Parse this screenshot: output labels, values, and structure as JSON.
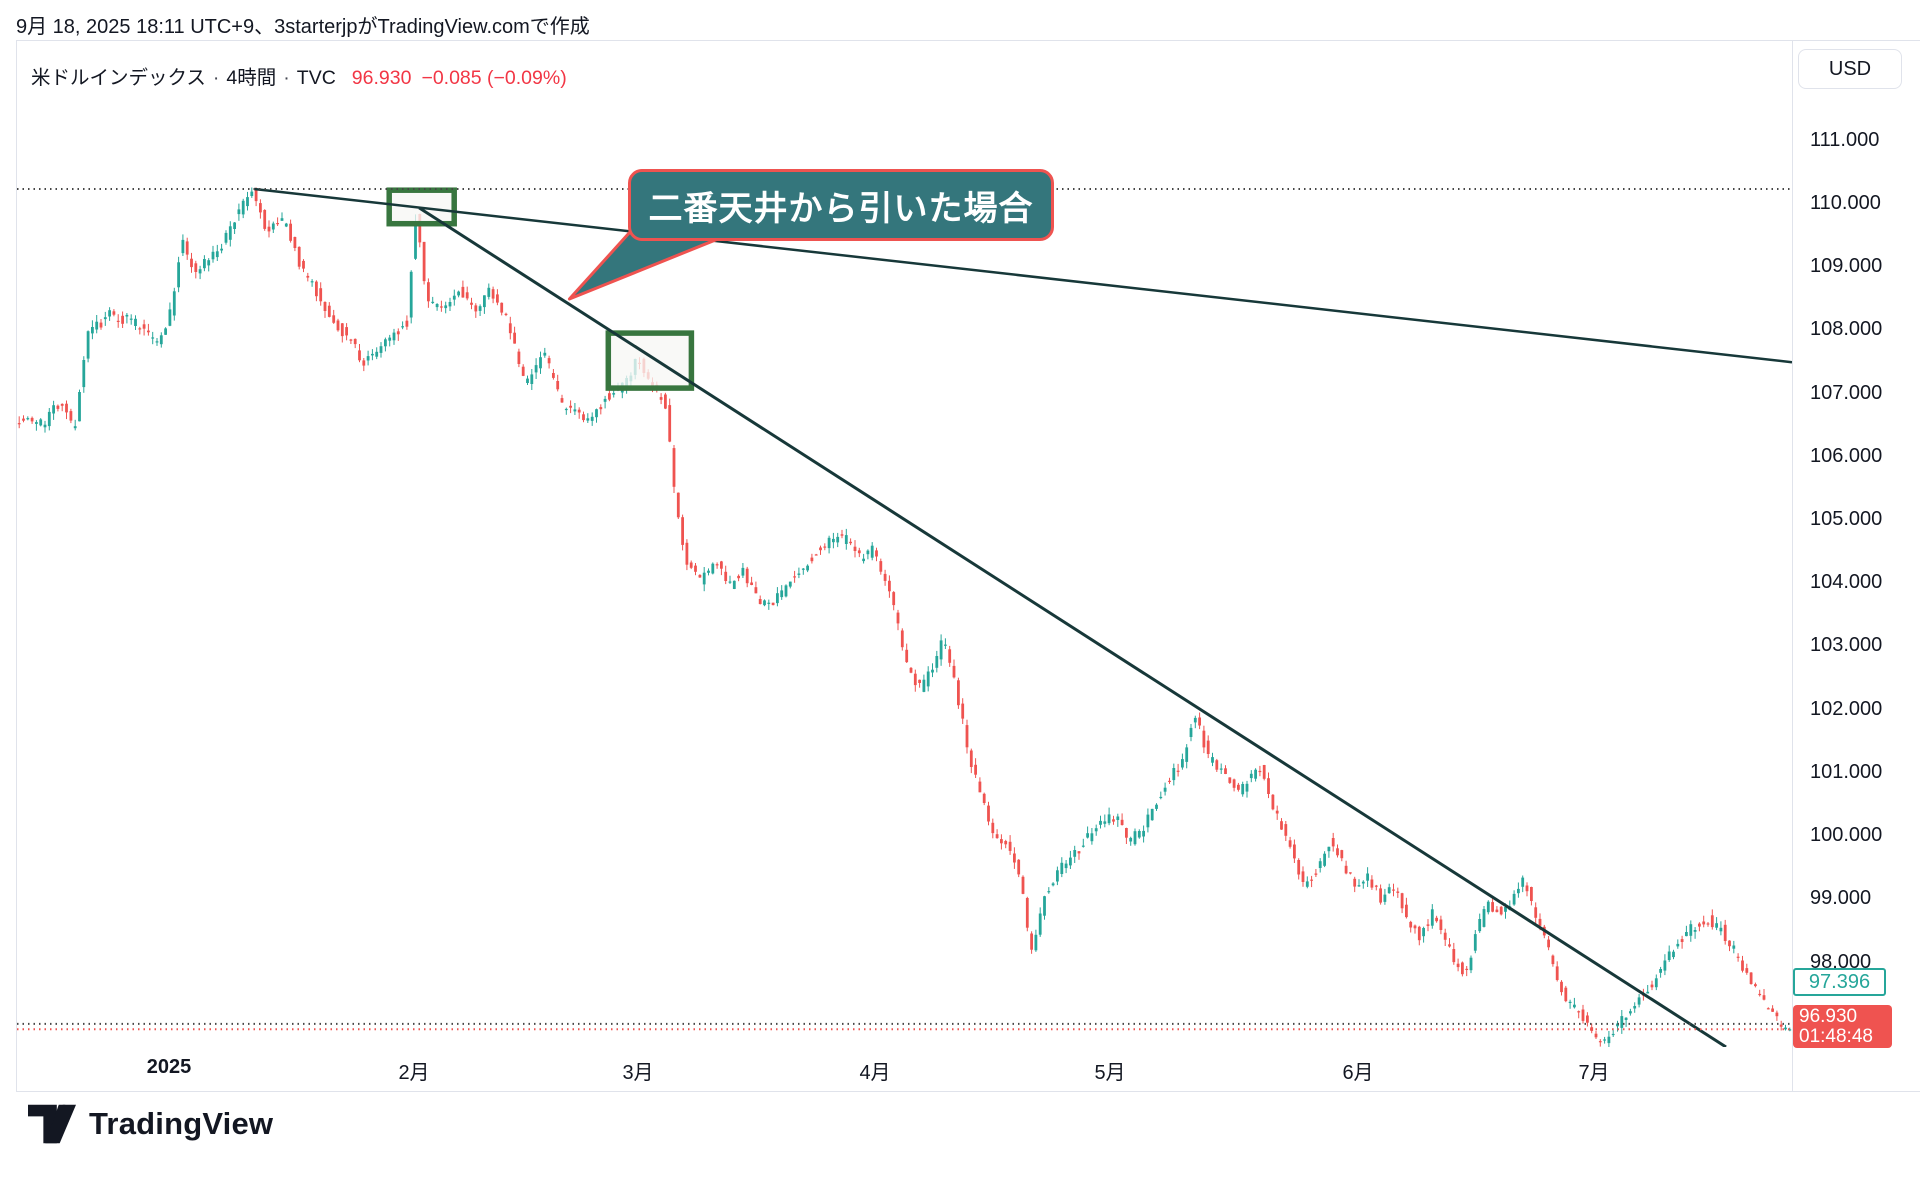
{
  "page": {
    "attribution": "9月 18, 2025 18:11 UTC+9、3starterjpがTradingView.comで作成",
    "watermark": "TradingView"
  },
  "legend": {
    "symbol": "米ドルインデックス",
    "sep": "·",
    "interval": "4時間",
    "exchange": "TVC",
    "price": "96.930",
    "change": "−0.085 (−0.09%)"
  },
  "price_axis": {
    "currency": "USD",
    "ticks": [
      "111.000",
      "110.000",
      "109.000",
      "108.000",
      "107.000",
      "106.000",
      "105.000",
      "104.000",
      "103.000",
      "102.000",
      "101.000",
      "100.000",
      "99.000",
      "98.000"
    ],
    "teal_label": "97.396",
    "red_label_price": "96.930",
    "red_label_countdown": "01:48:48"
  },
  "time_axis": {
    "labels": [
      {
        "label": "2025",
        "f": 0.0857,
        "bold": true
      },
      {
        "label": "2月",
        "f": 0.2238
      },
      {
        "label": "3月",
        "f": 0.3501
      },
      {
        "label": "4月",
        "f": 0.4831
      },
      {
        "label": "5月",
        "f": 0.6156
      },
      {
        "label": "6月",
        "f": 0.7554
      },
      {
        "label": "7月",
        "f": 0.8884
      }
    ]
  },
  "chart_data": {
    "type": "candlestick",
    "title": "米ドルインデックス · 4時間 · TVC",
    "last_price": 96.93,
    "prev_close": 97.015,
    "change": "-0.085",
    "change_pct": "-0.09%",
    "ylim": [
      96.65,
      112.56
    ],
    "bar_count": 412,
    "seed": 7,
    "colors": {
      "up": "#26a69a",
      "down": "#ef5350",
      "trend": "#173839",
      "box": "#38763f",
      "box_fill": "rgba(247,247,245,0.78)",
      "dotted": "#464646",
      "dotted_red": "#ef5350"
    },
    "levels": [
      {
        "price": 110.22,
        "color": "#464646",
        "style": "dotted",
        "name": "high-level"
      },
      {
        "price": 97.015,
        "color": "#464646",
        "style": "dotted",
        "name": "prev-close-level"
      },
      {
        "price": 96.93,
        "color": "#ef5350",
        "style": "dotted",
        "name": "last-price-level"
      }
    ],
    "trendlines": [
      {
        "name": "trendline-from-first-top",
        "x1f": 0.1336,
        "p1": 110.22,
        "x2f": 1.0,
        "p2": 107.48,
        "width": 2.5
      },
      {
        "name": "trendline-from-second-top",
        "x1f": 0.2266,
        "p1": 109.92,
        "x2f": 0.9628,
        "p2": 96.65,
        "width": 3
      }
    ],
    "boxes": [
      {
        "name": "second-top-box",
        "x1f": 0.2097,
        "p1": 110.2,
        "x2f": 0.2463,
        "p2": 109.67
      },
      {
        "name": "third-top-box",
        "x1f": 0.3331,
        "p1": 107.94,
        "x2f": 0.3799,
        "p2": 107.07
      }
    ],
    "callout": {
      "text": "二番天井から引いた場合",
      "x1f": 0.3444,
      "p_top": 110.54,
      "x2f": 0.5846,
      "p_bottom": 109.4,
      "tail_fx": 0.3112,
      "tail_p": 108.48
    },
    "price_path": [
      [
        0,
        106.6
      ],
      [
        0.016,
        106.5
      ],
      [
        0.026,
        106.9
      ],
      [
        0.033,
        106.4
      ],
      [
        0.041,
        107.9
      ],
      [
        0.053,
        108.25
      ],
      [
        0.067,
        108.1
      ],
      [
        0.08,
        107.8
      ],
      [
        0.088,
        108.3
      ],
      [
        0.094,
        109.45
      ],
      [
        0.101,
        108.9
      ],
      [
        0.114,
        109.2
      ],
      [
        0.125,
        109.8
      ],
      [
        0.134,
        110.18
      ],
      [
        0.142,
        109.55
      ],
      [
        0.152,
        109.7
      ],
      [
        0.161,
        109.0
      ],
      [
        0.169,
        108.65
      ],
      [
        0.18,
        108.1
      ],
      [
        0.189,
        107.85
      ],
      [
        0.197,
        107.45
      ],
      [
        0.212,
        107.9
      ],
      [
        0.221,
        108.1
      ],
      [
        0.2265,
        109.9
      ],
      [
        0.232,
        108.5
      ],
      [
        0.242,
        108.3
      ],
      [
        0.251,
        108.6
      ],
      [
        0.26,
        108.35
      ],
      [
        0.268,
        108.6
      ],
      [
        0.277,
        108.2
      ],
      [
        0.288,
        107.15
      ],
      [
        0.299,
        107.6
      ],
      [
        0.309,
        106.8
      ],
      [
        0.324,
        106.5
      ],
      [
        0.333,
        106.9
      ],
      [
        0.343,
        107.1
      ],
      [
        0.352,
        107.55
      ],
      [
        0.36,
        107.1
      ],
      [
        0.3675,
        106.8
      ],
      [
        0.372,
        105.4
      ],
      [
        0.379,
        104.3
      ],
      [
        0.387,
        104.0
      ],
      [
        0.395,
        104.35
      ],
      [
        0.4025,
        103.9
      ],
      [
        0.41,
        104.2
      ],
      [
        0.418,
        103.75
      ],
      [
        0.426,
        103.6
      ],
      [
        0.436,
        103.95
      ],
      [
        0.444,
        104.2
      ],
      [
        0.452,
        104.5
      ],
      [
        0.4605,
        104.65
      ],
      [
        0.469,
        104.7
      ],
      [
        0.477,
        104.4
      ],
      [
        0.484,
        104.5
      ],
      [
        0.494,
        103.9
      ],
      [
        0.502,
        102.8
      ],
      [
        0.511,
        102.3
      ],
      [
        0.5175,
        102.6
      ],
      [
        0.524,
        103.1
      ],
      [
        0.53,
        102.5
      ],
      [
        0.538,
        101.3
      ],
      [
        0.5445,
        100.7
      ],
      [
        0.553,
        100.0
      ],
      [
        0.5615,
        99.8
      ],
      [
        0.568,
        99.2
      ],
      [
        0.574,
        98.1
      ],
      [
        0.581,
        99.0
      ],
      [
        0.59,
        99.5
      ],
      [
        0.5985,
        99.7
      ],
      [
        0.6065,
        100.0
      ],
      [
        0.615,
        100.25
      ],
      [
        0.622,
        100.3
      ],
      [
        0.629,
        99.9
      ],
      [
        0.6365,
        100.1
      ],
      [
        0.644,
        100.5
      ],
      [
        0.6515,
        100.9
      ],
      [
        0.6595,
        101.2
      ],
      [
        0.6655,
        101.95
      ],
      [
        0.674,
        101.2
      ],
      [
        0.6825,
        101.0
      ],
      [
        0.691,
        100.7
      ],
      [
        0.698,
        100.9
      ],
      [
        0.7035,
        101.1
      ],
      [
        0.711,
        100.4
      ],
      [
        0.719,
        99.9
      ],
      [
        0.728,
        99.2
      ],
      [
        0.735,
        99.45
      ],
      [
        0.743,
        99.95
      ],
      [
        0.75,
        99.5
      ],
      [
        0.7565,
        99.2
      ],
      [
        0.763,
        99.35
      ],
      [
        0.771,
        99.0
      ],
      [
        0.7785,
        99.15
      ],
      [
        0.786,
        98.7
      ],
      [
        0.793,
        98.4
      ],
      [
        0.801,
        98.8
      ],
      [
        0.808,
        98.3
      ],
      [
        0.8155,
        97.9
      ],
      [
        0.8195,
        97.8
      ],
      [
        0.825,
        98.5
      ],
      [
        0.832,
        98.9
      ],
      [
        0.8405,
        98.8
      ],
      [
        0.845,
        99.0
      ],
      [
        0.8525,
        99.3
      ],
      [
        0.859,
        98.7
      ],
      [
        0.866,
        98.2
      ],
      [
        0.8715,
        97.6
      ],
      [
        0.879,
        97.3
      ],
      [
        0.886,
        97.1
      ],
      [
        0.893,
        96.7
      ],
      [
        0.8995,
        96.8
      ],
      [
        0.9075,
        97.1
      ],
      [
        0.9155,
        97.4
      ],
      [
        0.923,
        97.6
      ],
      [
        0.931,
        97.95
      ],
      [
        0.939,
        98.3
      ],
      [
        0.9475,
        98.55
      ],
      [
        0.955,
        98.7
      ],
      [
        0.9635,
        98.5
      ],
      [
        0.972,
        98.1
      ],
      [
        0.98,
        97.7
      ],
      [
        0.9865,
        97.4
      ],
      [
        0.9935,
        97.1
      ],
      [
        1,
        96.93
      ]
    ]
  }
}
